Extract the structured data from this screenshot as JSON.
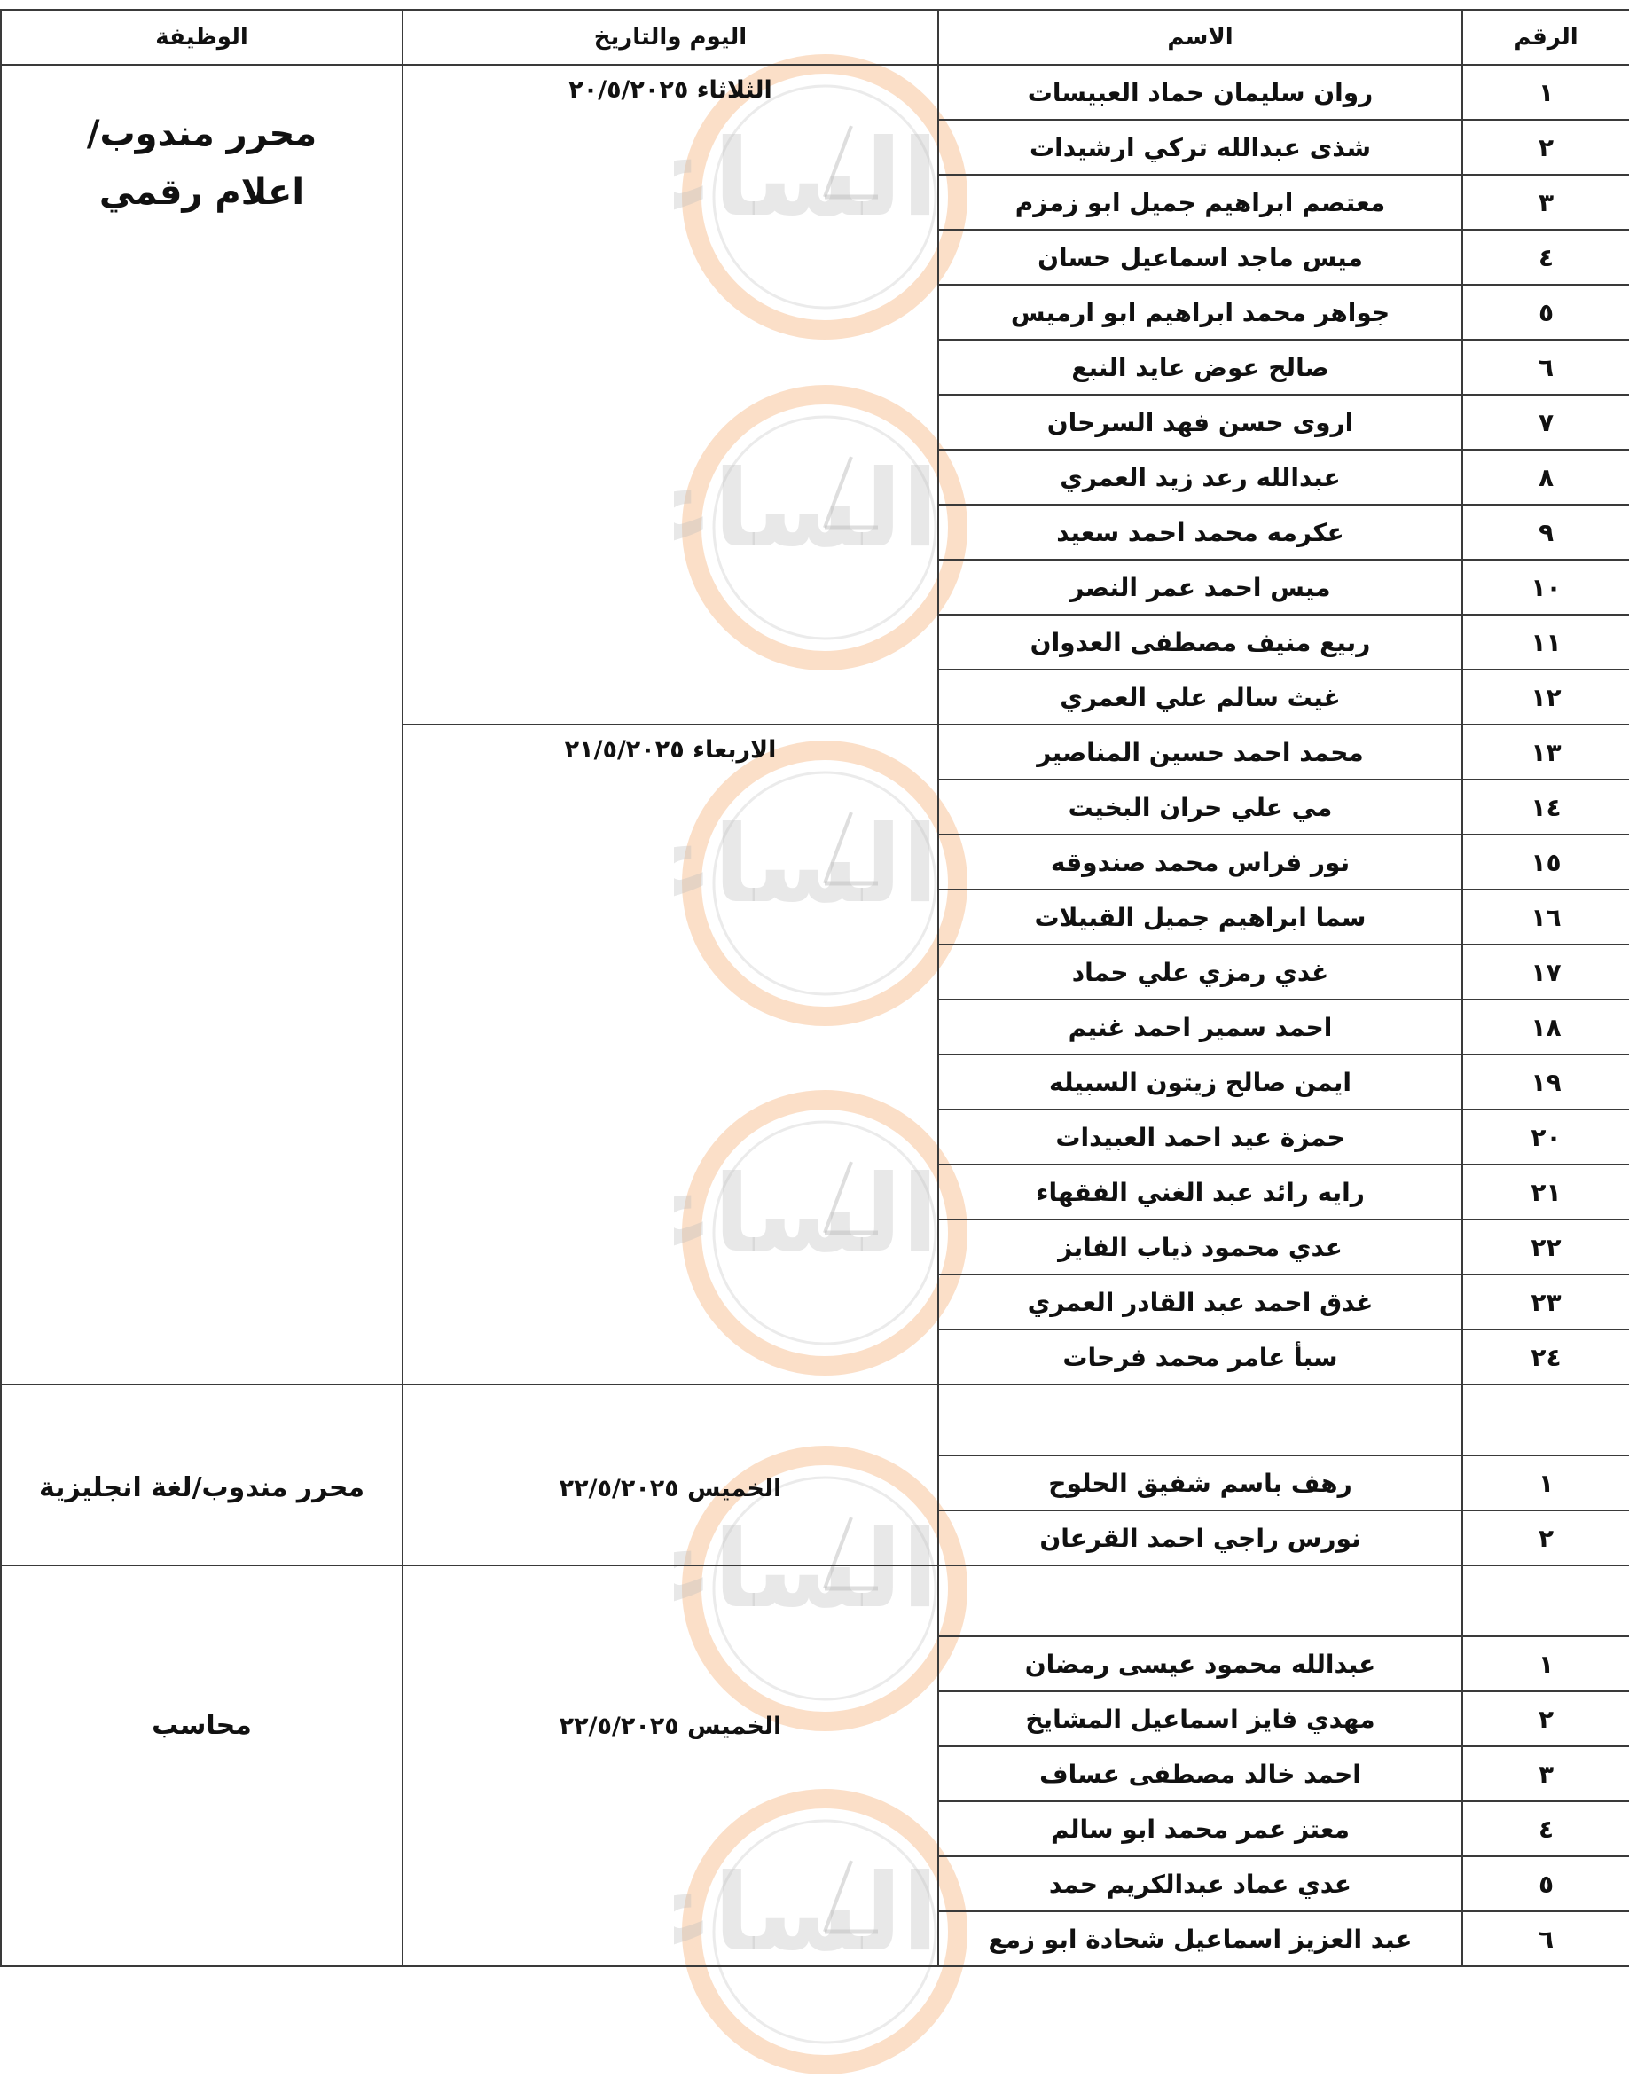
{
  "headers": {
    "number": "الرقم",
    "name": "الاسم",
    "date": "اليوم والتاريخ",
    "job": "الوظيفة"
  },
  "watermark": {
    "text": "مدار الساعة الإخبارية",
    "ring_color": "#f4a460",
    "text_color": "#bdbdbd"
  },
  "sections": [
    {
      "job_lines": [
        "محرر مندوب/",
        "اعلام رقمي"
      ],
      "leading_blank": false,
      "dates": [
        {
          "label": "الثلاثاء ٢٠/٥/٢٠٢٥",
          "rows": [
            {
              "n": "١",
              "name": "روان سليمان حماد العبيسات"
            },
            {
              "n": "٢",
              "name": "شذى عبدالله تركي ارشيدات"
            },
            {
              "n": "٣",
              "name": "معتصم ابراهيم جميل ابو زمزم"
            },
            {
              "n": "٤",
              "name": "ميس ماجد اسماعيل حسان"
            },
            {
              "n": "٥",
              "name": "جواهر محمد ابراهيم ابو ارميس"
            },
            {
              "n": "٦",
              "name": "صالح عوض عايد النبع"
            },
            {
              "n": "٧",
              "name": "اروى حسن فهد السرحان"
            },
            {
              "n": "٨",
              "name": "عبدالله رعد زيد العمري"
            },
            {
              "n": "٩",
              "name": "عكرمه محمد احمد سعيد"
            },
            {
              "n": "١٠",
              "name": "ميس احمد عمر النصر"
            },
            {
              "n": "١١",
              "name": "ربيع منيف مصطفى العدوان"
            },
            {
              "n": "١٢",
              "name": "غيث سالم علي العمري"
            }
          ]
        },
        {
          "label": "الاربعاء ٢١/٥/٢٠٢٥",
          "rows": [
            {
              "n": "١٣",
              "name": "محمد احمد حسين المناصير"
            },
            {
              "n": "١٤",
              "name": "مي علي حران البخيت"
            },
            {
              "n": "١٥",
              "name": "نور فراس محمد صندوقه"
            },
            {
              "n": "١٦",
              "name": "سما ابراهيم جميل القبيلات"
            },
            {
              "n": "١٧",
              "name": "غدي رمزي علي حماد"
            },
            {
              "n": "١٨",
              "name": "احمد سمير احمد غنيم"
            },
            {
              "n": "١٩",
              "name": "ايمن صالح زيتون السبيله"
            },
            {
              "n": "٢٠",
              "name": "حمزة عيد احمد العبيدات"
            },
            {
              "n": "٢١",
              "name": "رايه رائد عبد الغني الفقهاء"
            },
            {
              "n": "٢٢",
              "name": "عدي محمود ذياب الفايز"
            },
            {
              "n": "٢٣",
              "name": "غدق احمد عبد القادر العمري"
            },
            {
              "n": "٢٤",
              "name": "سبأ عامر محمد فرحات"
            }
          ]
        }
      ]
    },
    {
      "job_lines": [
        "محرر مندوب/لغة انجليزية"
      ],
      "leading_blank": true,
      "dates": [
        {
          "label": "الخميس ٢٢/٥/٢٠٢٥",
          "rows": [
            {
              "n": "١",
              "name": "رهف باسم شفيق الحلوح"
            },
            {
              "n": "٢",
              "name": "نورس راجي احمد القرعان"
            }
          ]
        }
      ]
    },
    {
      "job_lines": [
        "محاسب"
      ],
      "leading_blank": true,
      "dates": [
        {
          "label": "الخميس ٢٢/٥/٢٠٢٥",
          "rows": [
            {
              "n": "١",
              "name": "عبدالله محمود عيسى رمضان"
            },
            {
              "n": "٢",
              "name": "مهدي فايز اسماعيل المشايخ"
            },
            {
              "n": "٣",
              "name": "احمد خالد مصطفى عساف"
            },
            {
              "n": "٤",
              "name": "معتز عمر محمد ابو سالم"
            },
            {
              "n": "٥",
              "name": "عدي عماد عبدالكريم حمد"
            },
            {
              "n": "٦",
              "name": "عبد العزيز اسماعيل شحادة ابو زمع"
            }
          ]
        }
      ]
    }
  ]
}
